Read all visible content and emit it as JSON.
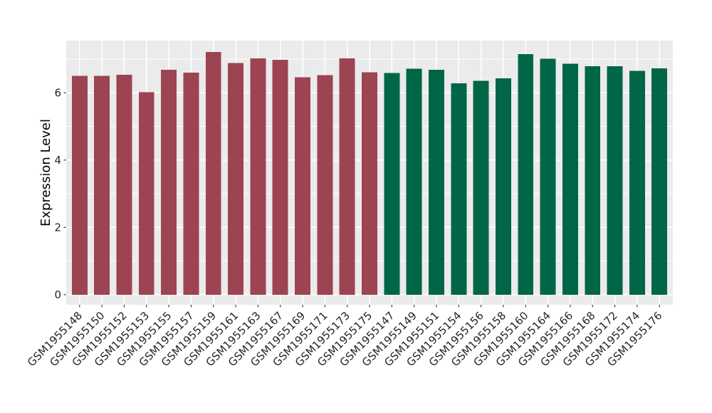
{
  "figure": {
    "background": "#FFFFFF"
  },
  "chart_data": {
    "type": "bar",
    "title": "",
    "xlabel": "",
    "ylabel": "Expression Level",
    "legend": "none",
    "panel_background": "#EBEBEB",
    "grid": {
      "color": "#FFFFFF",
      "major_y": [
        0,
        2,
        4,
        6
      ],
      "minor_y": [
        1,
        3,
        5,
        7
      ],
      "vertical_major_x": "one per bar center"
    },
    "y_ticks": [
      0,
      2,
      4,
      6
    ],
    "ylim": [
      -0.3,
      7.55
    ],
    "x_label_angle_deg": 45,
    "bar_width_fraction": 0.7,
    "group_colors": {
      "group1": "#9C4452",
      "group2": "#006647"
    },
    "samples": [
      {
        "id": "GSM1955148",
        "value": 6.5,
        "group": "group1"
      },
      {
        "id": "GSM1955150",
        "value": 6.5,
        "group": "group1"
      },
      {
        "id": "GSM1955152",
        "value": 6.53,
        "group": "group1"
      },
      {
        "id": "GSM1955153",
        "value": 6.02,
        "group": "group1"
      },
      {
        "id": "GSM1955155",
        "value": 6.68,
        "group": "group1"
      },
      {
        "id": "GSM1955157",
        "value": 6.6,
        "group": "group1"
      },
      {
        "id": "GSM1955159",
        "value": 7.21,
        "group": "group1"
      },
      {
        "id": "GSM1955161",
        "value": 6.88,
        "group": "group1"
      },
      {
        "id": "GSM1955163",
        "value": 7.02,
        "group": "group1"
      },
      {
        "id": "GSM1955167",
        "value": 6.98,
        "group": "group1"
      },
      {
        "id": "GSM1955169",
        "value": 6.46,
        "group": "group1"
      },
      {
        "id": "GSM1955171",
        "value": 6.52,
        "group": "group1"
      },
      {
        "id": "GSM1955173",
        "value": 7.02,
        "group": "group1"
      },
      {
        "id": "GSM1955175",
        "value": 6.61,
        "group": "group1"
      },
      {
        "id": "GSM1955147",
        "value": 6.59,
        "group": "group2"
      },
      {
        "id": "GSM1955149",
        "value": 6.71,
        "group": "group2"
      },
      {
        "id": "GSM1955151",
        "value": 6.68,
        "group": "group2"
      },
      {
        "id": "GSM1955154",
        "value": 6.28,
        "group": "group2"
      },
      {
        "id": "GSM1955156",
        "value": 6.35,
        "group": "group2"
      },
      {
        "id": "GSM1955158",
        "value": 6.43,
        "group": "group2"
      },
      {
        "id": "GSM1955160",
        "value": 7.15,
        "group": "group2"
      },
      {
        "id": "GSM1955164",
        "value": 7.01,
        "group": "group2"
      },
      {
        "id": "GSM1955166",
        "value": 6.86,
        "group": "group2"
      },
      {
        "id": "GSM1955168",
        "value": 6.79,
        "group": "group2"
      },
      {
        "id": "GSM1955172",
        "value": 6.79,
        "group": "group2"
      },
      {
        "id": "GSM1955174",
        "value": 6.65,
        "group": "group2"
      },
      {
        "id": "GSM1955176",
        "value": 6.72,
        "group": "group2"
      }
    ]
  },
  "style": {
    "tick_mark_color": "#333333",
    "tick_label_color": "#262626",
    "axis_title_color": "#000000",
    "tick_label_size": 15,
    "axis_title_size": 18
  }
}
